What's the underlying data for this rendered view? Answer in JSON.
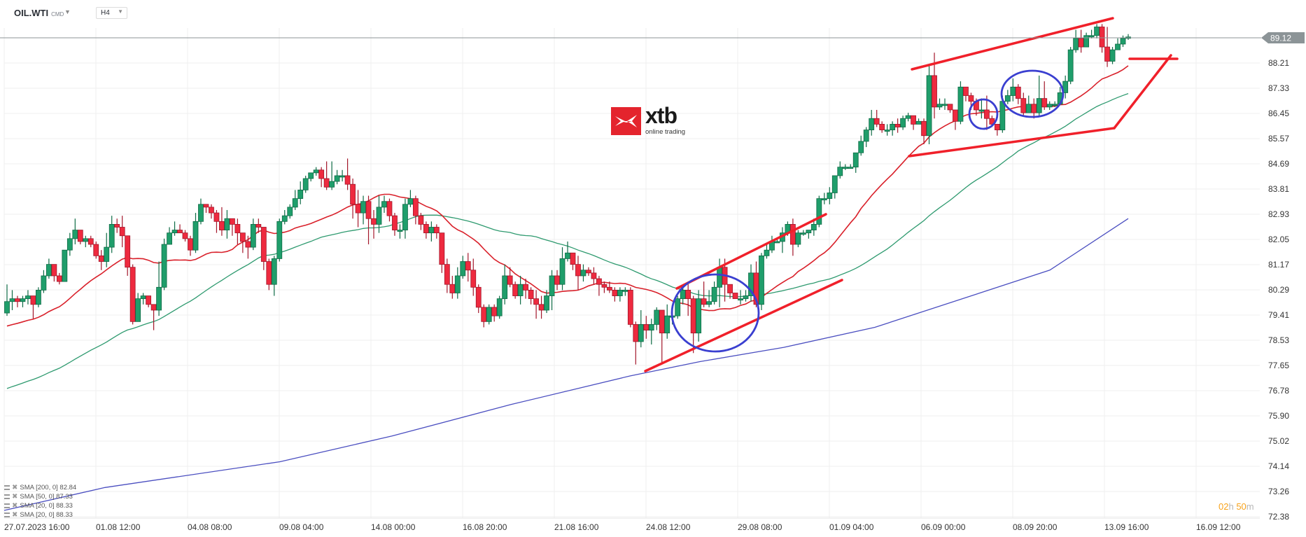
{
  "header": {
    "symbol": "OIL.WTI",
    "symbol_type": "CMD",
    "timeframe": "H4"
  },
  "logo": {
    "brand": "xtb",
    "tagline": "online trading",
    "color": "#e4242d"
  },
  "timer": {
    "hours": "02",
    "h": "h",
    "minutes": "50",
    "m": "m"
  },
  "current_price": "89.12",
  "colors": {
    "up": "#1f9e6b",
    "up_border": "#0e6b45",
    "down": "#ee2a3f",
    "down_border": "#a3162a",
    "sma20": "#d9202a",
    "sma50": "#2e9a6f",
    "sma200": "#4a4ec0",
    "annotation_red": "#f0202a",
    "annotation_blue": "#3a3fd0",
    "grid": "#efefef",
    "price_line": "#8c9497",
    "price_tag": "#8c9497"
  },
  "legend": [
    {
      "label": "SMA [200, 0] 82.84"
    },
    {
      "label": "SMA [50, 0] 87.33"
    },
    {
      "label": "SMA [20, 0] 88.33"
    },
    {
      "label": "SMA [20, 0] 88.33"
    }
  ],
  "chart_data": {
    "type": "candlestick",
    "title": "OIL.WTI CMD H4",
    "xlabel": "",
    "ylabel": "",
    "ylim": [
      72.38,
      89.12
    ],
    "y_ticks": [
      "89.12",
      "88.21",
      "87.33",
      "86.45",
      "85.57",
      "84.69",
      "83.81",
      "82.93",
      "82.05",
      "81.17",
      "80.29",
      "79.41",
      "78.53",
      "77.65",
      "76.78",
      "75.90",
      "75.02",
      "74.14",
      "73.26",
      "72.38"
    ],
    "x_ticks": [
      "27.07.2023  16:00",
      "01.08  12:00",
      "04.08  08:00",
      "09.08  04:00",
      "14.08  00:00",
      "16.08  20:00",
      "21.08  16:00",
      "24.08  12:00",
      "29.08  08:00",
      "01.09  04:00",
      "06.09  00:00",
      "08.09  20:00",
      "13.09  16:00",
      "16.09  12:00"
    ],
    "grid": true,
    "last_price": 89.12,
    "candles": [
      [
        79.5,
        79.9,
        79.4,
        80.5
      ],
      [
        79.9,
        80.0,
        79.6,
        80.3
      ],
      [
        80.0,
        79.9,
        79.7,
        80.1
      ],
      [
        79.9,
        80.0,
        79.7,
        80.1
      ],
      [
        80.0,
        80.1,
        79.8,
        80.3
      ],
      [
        80.1,
        79.8,
        79.3,
        80.1
      ],
      [
        79.8,
        80.3,
        79.7,
        80.4
      ],
      [
        80.3,
        80.8,
        80.2,
        81.0
      ],
      [
        80.8,
        81.2,
        80.7,
        81.4
      ],
      [
        81.2,
        80.8,
        80.6,
        81.2
      ],
      [
        80.8,
        80.6,
        80.5,
        80.9
      ],
      [
        80.6,
        81.7,
        80.6,
        81.7
      ],
      [
        81.7,
        82.1,
        81.5,
        82.3
      ],
      [
        82.1,
        82.4,
        81.9,
        82.8
      ],
      [
        82.4,
        82.0,
        81.9,
        82.4
      ],
      [
        82.0,
        82.1,
        81.8,
        82.2
      ],
      [
        82.1,
        81.9,
        81.8,
        82.2
      ],
      [
        81.9,
        81.5,
        81.4,
        82.0
      ],
      [
        81.5,
        81.3,
        81.0,
        81.7
      ],
      [
        81.3,
        81.8,
        81.1,
        82.3
      ],
      [
        81.8,
        82.6,
        81.6,
        82.9
      ],
      [
        82.6,
        82.5,
        82.3,
        82.8
      ],
      [
        82.5,
        82.2,
        81.8,
        82.9
      ],
      [
        82.2,
        81.1,
        80.8,
        82.2
      ],
      [
        81.1,
        79.2,
        79.1,
        81.2
      ],
      [
        79.2,
        80.0,
        79.2,
        80.2
      ],
      [
        80.0,
        80.1,
        79.8,
        80.2
      ],
      [
        80.1,
        79.8,
        79.7,
        80.1
      ],
      [
        79.8,
        79.6,
        78.9,
        79.7
      ],
      [
        79.6,
        80.4,
        79.4,
        81.3
      ],
      [
        80.4,
        81.9,
        80.3,
        82.1
      ],
      [
        81.9,
        82.3,
        82.0,
        82.5
      ],
      [
        82.3,
        82.4,
        82.2,
        82.7
      ],
      [
        82.4,
        82.3,
        82.3,
        82.6
      ],
      [
        82.3,
        82.1,
        82.0,
        82.4
      ],
      [
        82.1,
        81.7,
        81.5,
        82.2
      ],
      [
        81.7,
        82.7,
        81.6,
        83.0
      ],
      [
        82.7,
        83.3,
        82.6,
        83.5
      ],
      [
        83.3,
        83.2,
        83.0,
        83.3
      ],
      [
        83.2,
        83.0,
        82.8,
        83.3
      ],
      [
        83.0,
        82.7,
        82.3,
        83.1
      ],
      [
        82.7,
        82.4,
        82.2,
        83.2
      ],
      [
        82.4,
        82.8,
        82.1,
        83.1
      ],
      [
        82.8,
        82.6,
        82.2,
        82.8
      ],
      [
        82.6,
        82.3,
        81.9,
        82.8
      ],
      [
        82.3,
        82.0,
        81.6,
        82.3
      ],
      [
        82.0,
        81.8,
        81.4,
        82.2
      ],
      [
        81.8,
        82.6,
        81.7,
        82.8
      ],
      [
        82.6,
        82.5,
        82.3,
        82.8
      ],
      [
        82.5,
        81.3,
        81.0,
        82.5
      ],
      [
        81.3,
        80.5,
        80.3,
        81.4
      ],
      [
        80.5,
        81.4,
        80.1,
        81.5
      ],
      [
        81.4,
        82.7,
        81.3,
        82.8
      ],
      [
        82.7,
        82.9,
        82.6,
        83.1
      ],
      [
        82.9,
        83.2,
        82.8,
        83.3
      ],
      [
        83.2,
        83.5,
        83.1,
        83.8
      ],
      [
        83.5,
        83.8,
        83.3,
        84.1
      ],
      [
        83.8,
        84.2,
        83.7,
        84.3
      ],
      [
        84.2,
        84.4,
        84.1,
        84.4
      ],
      [
        84.4,
        84.5,
        84.3,
        84.6
      ],
      [
        84.5,
        84.2,
        83.9,
        84.6
      ],
      [
        84.2,
        83.9,
        83.8,
        84.8
      ],
      [
        83.9,
        84.1,
        83.8,
        84.8
      ],
      [
        84.1,
        84.3,
        84.0,
        84.5
      ],
      [
        84.3,
        84.3,
        84.1,
        84.5
      ],
      [
        84.3,
        84.0,
        83.8,
        84.9
      ],
      [
        84.0,
        83.3,
        82.8,
        84.2
      ],
      [
        83.3,
        83.0,
        82.5,
        83.8
      ],
      [
        83.0,
        83.4,
        82.6,
        83.6
      ],
      [
        83.4,
        82.8,
        81.9,
        83.6
      ],
      [
        82.8,
        82.6,
        82.1,
        83.1
      ],
      [
        82.6,
        83.2,
        82.3,
        83.6
      ],
      [
        83.2,
        83.4,
        83.0,
        83.6
      ],
      [
        83.4,
        82.9,
        82.7,
        83.5
      ],
      [
        82.9,
        82.4,
        82.2,
        83.0
      ],
      [
        82.4,
        82.4,
        82.1,
        82.6
      ],
      [
        82.4,
        83.3,
        82.1,
        83.5
      ],
      [
        83.3,
        83.5,
        83.2,
        83.8
      ],
      [
        83.5,
        82.9,
        82.6,
        83.6
      ],
      [
        82.9,
        82.6,
        82.4,
        83.0
      ],
      [
        82.6,
        82.3,
        82.1,
        82.7
      ],
      [
        82.3,
        82.5,
        82.0,
        82.7
      ],
      [
        82.5,
        82.3,
        82.1,
        82.6
      ],
      [
        82.3,
        81.2,
        80.9,
        82.3
      ],
      [
        81.2,
        80.5,
        80.2,
        81.4
      ],
      [
        80.5,
        80.2,
        80.0,
        80.8
      ],
      [
        80.2,
        80.8,
        80.0,
        81.1
      ],
      [
        80.8,
        81.3,
        80.7,
        81.5
      ],
      [
        81.3,
        81.0,
        80.6,
        81.6
      ],
      [
        81.0,
        80.4,
        80.1,
        81.4
      ],
      [
        80.4,
        79.7,
        79.5,
        80.5
      ],
      [
        79.7,
        79.2,
        79.0,
        79.8
      ],
      [
        79.2,
        79.7,
        79.1,
        79.8
      ],
      [
        79.7,
        79.4,
        79.2,
        79.8
      ],
      [
        79.4,
        80.0,
        79.3,
        80.1
      ],
      [
        80.0,
        80.8,
        79.8,
        81.2
      ],
      [
        80.8,
        80.5,
        80.4,
        81.1
      ],
      [
        80.5,
        80.1,
        80.0,
        80.6
      ],
      [
        80.1,
        80.5,
        79.8,
        80.8
      ],
      [
        80.5,
        80.3,
        80.0,
        80.7
      ],
      [
        80.3,
        80.0,
        79.8,
        80.4
      ],
      [
        80.0,
        79.8,
        79.3,
        80.3
      ],
      [
        79.8,
        79.6,
        79.3,
        80.1
      ],
      [
        79.6,
        80.1,
        79.5,
        80.3
      ],
      [
        80.1,
        80.8,
        79.6,
        81.0
      ],
      [
        80.8,
        80.5,
        80.3,
        81.0
      ],
      [
        80.5,
        81.4,
        80.3,
        81.8
      ],
      [
        81.4,
        81.6,
        81.3,
        82.0
      ],
      [
        81.6,
        81.2,
        81.0,
        81.6
      ],
      [
        81.2,
        80.8,
        80.3,
        81.5
      ],
      [
        80.8,
        81.0,
        80.6,
        81.2
      ],
      [
        81.0,
        80.9,
        80.8,
        81.1
      ],
      [
        80.9,
        80.7,
        80.5,
        81.1
      ],
      [
        80.7,
        80.5,
        80.1,
        80.8
      ],
      [
        80.5,
        80.4,
        80.2,
        80.6
      ],
      [
        80.4,
        80.3,
        80.2,
        80.6
      ],
      [
        80.3,
        80.1,
        79.9,
        80.4
      ],
      [
        80.1,
        80.3,
        79.9,
        80.4
      ],
      [
        80.3,
        80.3,
        80.1,
        80.4
      ],
      [
        80.3,
        79.1,
        79.0,
        80.4
      ],
      [
        79.1,
        78.5,
        77.7,
        79.2
      ],
      [
        78.5,
        79.1,
        78.3,
        79.6
      ],
      [
        79.1,
        78.9,
        78.6,
        79.4
      ],
      [
        78.9,
        79.1,
        78.4,
        79.3
      ],
      [
        79.1,
        79.6,
        78.9,
        79.7
      ],
      [
        79.6,
        78.8,
        77.7,
        79.6
      ],
      [
        78.8,
        79.4,
        78.6,
        79.8
      ],
      [
        79.4,
        79.4,
        79.1,
        79.7
      ],
      [
        79.4,
        80.0,
        79.3,
        80.1
      ],
      [
        80.0,
        80.3,
        79.8,
        80.5
      ],
      [
        80.3,
        80.0,
        79.4,
        80.6
      ],
      [
        80.0,
        78.8,
        78.1,
        80.1
      ],
      [
        78.8,
        80.0,
        78.5,
        80.3
      ],
      [
        80.0,
        79.8,
        79.7,
        80.6
      ],
      [
        79.8,
        79.9,
        79.7,
        80.3
      ],
      [
        79.9,
        80.4,
        79.8,
        80.6
      ],
      [
        80.4,
        81.1,
        79.7,
        81.4
      ],
      [
        81.1,
        80.5,
        79.9,
        81.4
      ],
      [
        80.5,
        80.2,
        80.0,
        80.5
      ],
      [
        80.2,
        80.0,
        80.0,
        80.2
      ],
      [
        80.0,
        80.0,
        79.8,
        80.3
      ],
      [
        80.0,
        80.1,
        79.9,
        80.3
      ],
      [
        80.1,
        80.9,
        79.9,
        81.2
      ],
      [
        80.9,
        79.8,
        79.7,
        81.3
      ],
      [
        79.8,
        81.5,
        79.6,
        81.6
      ],
      [
        81.5,
        81.7,
        81.4,
        81.9
      ],
      [
        81.7,
        82.0,
        81.6,
        82.2
      ],
      [
        82.0,
        82.0,
        82.0,
        82.1
      ],
      [
        82.0,
        82.3,
        81.6,
        82.5
      ],
      [
        82.3,
        82.6,
        82.2,
        82.7
      ],
      [
        82.6,
        81.9,
        81.5,
        82.8
      ],
      [
        81.9,
        82.3,
        81.8,
        82.4
      ],
      [
        82.3,
        82.3,
        82.2,
        82.4
      ],
      [
        82.3,
        82.4,
        82.1,
        82.4
      ],
      [
        82.4,
        82.6,
        82.2,
        82.8
      ],
      [
        82.6,
        83.5,
        82.5,
        83.6
      ],
      [
        83.5,
        83.5,
        83.3,
        83.7
      ],
      [
        83.5,
        83.7,
        83.3,
        83.9
      ],
      [
        83.7,
        84.3,
        83.5,
        84.3
      ],
      [
        84.3,
        84.6,
        84.2,
        84.8
      ],
      [
        84.6,
        84.6,
        84.5,
        84.7
      ],
      [
        84.6,
        84.6,
        84.6,
        84.7
      ],
      [
        84.6,
        85.1,
        84.4,
        85.1
      ],
      [
        85.1,
        85.5,
        85.0,
        85.7
      ],
      [
        85.5,
        85.9,
        85.3,
        86.0
      ],
      [
        85.9,
        86.3,
        85.7,
        86.6
      ],
      [
        86.3,
        86.1,
        86.0,
        86.6
      ],
      [
        86.1,
        85.9,
        85.8,
        86.2
      ],
      [
        85.9,
        85.9,
        85.7,
        86.1
      ],
      [
        85.9,
        86.1,
        85.7,
        86.2
      ],
      [
        86.1,
        86.0,
        85.8,
        86.3
      ],
      [
        86.0,
        86.3,
        85.9,
        86.4
      ],
      [
        86.3,
        86.4,
        86.2,
        86.5
      ],
      [
        86.4,
        86.1,
        85.9,
        86.4
      ],
      [
        86.1,
        86.2,
        86.1,
        86.3
      ],
      [
        86.2,
        85.7,
        85.4,
        86.3
      ],
      [
        85.7,
        87.8,
        85.4,
        88.2
      ],
      [
        87.8,
        86.7,
        86.3,
        88.6
      ],
      [
        86.7,
        86.8,
        86.6,
        87.0
      ],
      [
        86.8,
        86.8,
        86.6,
        87.0
      ],
      [
        86.8,
        86.6,
        86.5,
        86.8
      ],
      [
        86.6,
        86.2,
        85.9,
        86.6
      ],
      [
        86.2,
        87.4,
        86.1,
        87.6
      ],
      [
        87.4,
        87.1,
        86.9,
        87.4
      ],
      [
        87.1,
        86.9,
        86.6,
        87.2
      ],
      [
        86.9,
        86.6,
        86.4,
        87.0
      ],
      [
        86.6,
        86.6,
        86.3,
        87.0
      ],
      [
        86.6,
        86.3,
        85.9,
        87.1
      ],
      [
        86.3,
        86.1,
        86.0,
        86.4
      ],
      [
        86.1,
        85.9,
        85.7,
        86.0
      ],
      [
        85.9,
        86.9,
        85.8,
        87.1
      ],
      [
        86.9,
        87.1,
        86.8,
        87.3
      ],
      [
        87.1,
        87.4,
        86.9,
        87.7
      ],
      [
        87.4,
        87.0,
        86.8,
        87.5
      ],
      [
        87.0,
        86.5,
        86.4,
        87.2
      ],
      [
        86.5,
        86.8,
        86.5,
        87.1
      ],
      [
        86.8,
        86.5,
        86.3,
        87.0
      ],
      [
        86.5,
        87.0,
        86.4,
        87.8
      ],
      [
        87.0,
        86.7,
        86.6,
        87.6
      ],
      [
        86.7,
        86.8,
        86.6,
        86.9
      ],
      [
        86.8,
        86.8,
        86.7,
        86.9
      ],
      [
        86.8,
        87.2,
        86.8,
        87.4
      ],
      [
        87.2,
        87.6,
        87.0,
        87.8
      ],
      [
        87.6,
        88.7,
        87.5,
        88.8
      ],
      [
        88.7,
        89.1,
        88.6,
        89.4
      ],
      [
        89.1,
        88.8,
        88.6,
        89.4
      ],
      [
        88.8,
        89.2,
        88.9,
        89.3
      ],
      [
        89.2,
        89.2,
        89.1,
        89.4
      ],
      [
        89.2,
        89.5,
        89.1,
        89.6
      ],
      [
        89.5,
        88.8,
        88.6,
        89.6
      ],
      [
        88.8,
        88.3,
        88.1,
        89.5
      ],
      [
        88.3,
        88.7,
        88.2,
        88.8
      ],
      [
        88.7,
        88.9,
        88.7,
        89.1
      ],
      [
        88.9,
        89.1,
        88.8,
        89.2
      ],
      [
        89.1,
        89.15,
        89.05,
        89.25
      ]
    ]
  }
}
